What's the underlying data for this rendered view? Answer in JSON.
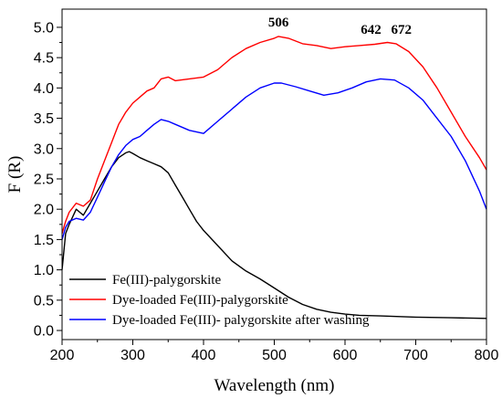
{
  "chart_data": {
    "type": "line",
    "xlabel": "Wavelength (nm)",
    "ylabel": "F (R)",
    "xlim": [
      200,
      800
    ],
    "ylim": [
      -0.15,
      5.3
    ],
    "x_ticks": [
      200,
      300,
      400,
      500,
      600,
      700,
      800
    ],
    "x_tick_labels": [
      "200",
      "300",
      "400",
      "500",
      "600",
      "700",
      "800"
    ],
    "y_ticks": [
      0.0,
      0.5,
      1.0,
      1.5,
      2.0,
      2.5,
      3.0,
      3.5,
      4.0,
      4.5,
      5.0
    ],
    "y_tick_labels": [
      "0.0",
      "0.5",
      "1.0",
      "1.5",
      "2.0",
      "2.5",
      "3.0",
      "3.5",
      "4.0",
      "4.5",
      "5.0"
    ],
    "grid": false,
    "legend_position": "bottom-left",
    "annotations": [
      {
        "text": "506",
        "x": 506,
        "y": 4.95
      },
      {
        "text": "642",
        "x": 642,
        "y": 4.83
      },
      {
        "text": "672",
        "x": 672,
        "y": 4.83
      }
    ],
    "series": [
      {
        "name": "Fe(III)-palygorskite",
        "color": "#000000",
        "x": [
          200,
          205,
          210,
          220,
          225,
          230,
          240,
          250,
          260,
          270,
          280,
          290,
          295,
          300,
          310,
          320,
          330,
          340,
          350,
          360,
          370,
          380,
          390,
          400,
          420,
          440,
          460,
          480,
          500,
          520,
          540,
          560,
          580,
          600,
          620,
          650,
          700,
          750,
          800
        ],
        "y": [
          1.0,
          1.6,
          1.75,
          2.0,
          1.95,
          1.9,
          2.1,
          2.3,
          2.5,
          2.7,
          2.85,
          2.93,
          2.95,
          2.92,
          2.85,
          2.8,
          2.75,
          2.7,
          2.6,
          2.4,
          2.2,
          2.0,
          1.8,
          1.65,
          1.4,
          1.15,
          0.98,
          0.85,
          0.7,
          0.55,
          0.43,
          0.35,
          0.3,
          0.27,
          0.25,
          0.24,
          0.22,
          0.21,
          0.2
        ]
      },
      {
        "name": "Dye-loaded Fe(III)-palygorskite",
        "color": "#ff0000",
        "x": [
          200,
          205,
          210,
          220,
          230,
          240,
          250,
          260,
          270,
          280,
          290,
          300,
          310,
          320,
          330,
          340,
          350,
          360,
          380,
          400,
          420,
          440,
          460,
          480,
          500,
          506,
          520,
          540,
          560,
          580,
          600,
          620,
          642,
          660,
          672,
          690,
          710,
          730,
          750,
          770,
          790,
          800
        ],
        "y": [
          1.6,
          1.8,
          1.95,
          2.1,
          2.05,
          2.15,
          2.5,
          2.8,
          3.1,
          3.4,
          3.6,
          3.75,
          3.85,
          3.95,
          4.0,
          4.15,
          4.18,
          4.12,
          4.15,
          4.18,
          4.3,
          4.5,
          4.65,
          4.75,
          4.82,
          4.85,
          4.82,
          4.73,
          4.7,
          4.65,
          4.68,
          4.7,
          4.72,
          4.75,
          4.73,
          4.6,
          4.35,
          4.0,
          3.6,
          3.2,
          2.85,
          2.65
        ]
      },
      {
        "name": "Dye-loaded Fe(III)- palygorskite after washing",
        "color": "#0000ff",
        "x": [
          200,
          205,
          210,
          220,
          230,
          240,
          250,
          260,
          270,
          280,
          290,
          300,
          310,
          320,
          330,
          340,
          350,
          360,
          380,
          400,
          420,
          440,
          460,
          480,
          500,
          510,
          530,
          550,
          570,
          590,
          610,
          630,
          650,
          670,
          690,
          710,
          730,
          750,
          770,
          790,
          800
        ],
        "y": [
          1.5,
          1.7,
          1.8,
          1.85,
          1.82,
          1.95,
          2.2,
          2.45,
          2.7,
          2.9,
          3.05,
          3.15,
          3.2,
          3.3,
          3.4,
          3.48,
          3.45,
          3.4,
          3.3,
          3.25,
          3.45,
          3.65,
          3.85,
          4.0,
          4.08,
          4.08,
          4.02,
          3.95,
          3.88,
          3.92,
          4.0,
          4.1,
          4.15,
          4.13,
          4.0,
          3.8,
          3.5,
          3.2,
          2.8,
          2.3,
          2.0
        ]
      }
    ]
  }
}
